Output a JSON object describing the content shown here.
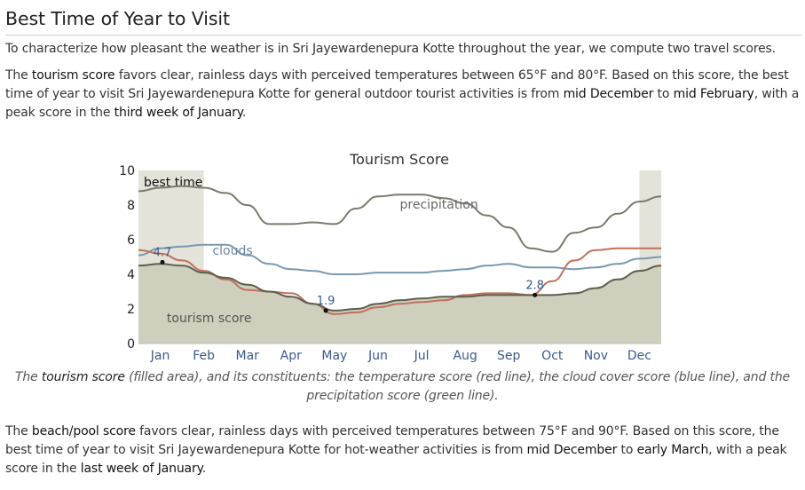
{
  "heading": "Best Time of Year to Visit",
  "intro": "To characterize how pleasant the weather is in Sri Jayewardenepura Kotte throughout the year, we compute two travel scores.",
  "tourism_para": {
    "t1": "The ",
    "h1": "tourism score",
    "t2": " favors clear, rainless days with perceived temperatures between 65°F and 80°F. Based on this score, the best time of year to visit Sri Jayewardenepura Kotte for general outdoor tourist activities is from ",
    "h2": "mid December",
    "t3": " to ",
    "h3": "mid February",
    "t4": ", with a peak score in the ",
    "h4": "third week of January",
    "t5": "."
  },
  "caption": {
    "t1": "The ",
    "h1": "tourism score",
    "t2": " (filled area), and its constituents: the temperature score (red line), the cloud cover score (blue line), and the precipitation score (green line)."
  },
  "beach_para": {
    "t1": "The ",
    "h1": "beach/pool score",
    "t2": " favors clear, rainless days with perceived temperatures between 75°F and 90°F. Based on this score, the best time of year to visit Sri Jayewardenepura Kotte for hot-weather activities is from ",
    "h2": "mid December",
    "t3": " to ",
    "h3": "early March",
    "t4": ", with a peak score in the ",
    "h4": "last week of January",
    "t5": "."
  },
  "chart_data": {
    "type": "area",
    "title": "Tourism Score",
    "xlabel": "",
    "ylabel": "",
    "ylim": [
      0,
      10
    ],
    "yticks": [
      "0",
      "2",
      "4",
      "6",
      "8",
      "10"
    ],
    "months": [
      "Jan",
      "Feb",
      "Mar",
      "Apr",
      "May",
      "Jun",
      "Jul",
      "Aug",
      "Sep",
      "Oct",
      "Nov",
      "Dec"
    ],
    "x_unit": "month",
    "best_time_label": "best time",
    "best_time_ranges": [
      [
        0.0,
        1.5
      ],
      [
        11.5,
        12.0
      ]
    ],
    "colors": {
      "tourism_fill": "#cfcfbd",
      "tourism_line": "#5e5e50",
      "temperature": "#c0705c",
      "clouds": "#7a98b0",
      "precipitation": "#7a7a6c",
      "best_time_band": "#e3e3da",
      "label_blue": "#3a5a8c",
      "axis_text": "#222222"
    },
    "series": [
      {
        "name": "tourism score",
        "role": "filled-area",
        "x": [
          0,
          0.5,
          1,
          1.5,
          2,
          2.5,
          3,
          3.5,
          4,
          4.5,
          5,
          5.5,
          6,
          6.5,
          7,
          7.5,
          8,
          8.5,
          9,
          9.5,
          10,
          10.5,
          11,
          11.5,
          12
        ],
        "values": [
          4.5,
          4.6,
          4.5,
          4.1,
          3.8,
          3.4,
          3.0,
          2.7,
          2.3,
          1.9,
          2.0,
          2.3,
          2.5,
          2.6,
          2.7,
          2.7,
          2.8,
          2.8,
          2.8,
          2.8,
          2.9,
          3.2,
          3.7,
          4.2,
          4.5
        ]
      },
      {
        "name": "temperature score",
        "role": "line",
        "x": [
          0,
          0.5,
          1,
          1.5,
          2,
          2.5,
          3,
          3.5,
          4,
          4.5,
          5,
          5.5,
          6,
          6.5,
          7,
          7.5,
          8,
          8.5,
          9,
          9.5,
          10,
          10.5,
          11,
          11.5,
          12
        ],
        "values": [
          5.4,
          5.2,
          4.8,
          4.2,
          3.7,
          3.1,
          3.0,
          2.9,
          2.3,
          1.7,
          1.8,
          2.1,
          2.3,
          2.4,
          2.5,
          2.8,
          2.9,
          2.9,
          2.8,
          3.6,
          4.8,
          5.4,
          5.5,
          5.5,
          5.5
        ]
      },
      {
        "name": "cloud cover score",
        "label": "clouds",
        "role": "line",
        "x": [
          0,
          0.5,
          1,
          1.5,
          2,
          2.5,
          3,
          3.5,
          4,
          4.5,
          5,
          5.5,
          6,
          6.5,
          7,
          7.5,
          8,
          8.5,
          9,
          9.5,
          10,
          10.5,
          11,
          11.5,
          12
        ],
        "values": [
          5.1,
          5.5,
          5.6,
          5.7,
          5.7,
          5.1,
          4.6,
          4.3,
          4.2,
          4.0,
          4.0,
          4.1,
          4.1,
          4.1,
          4.2,
          4.3,
          4.5,
          4.6,
          4.4,
          4.4,
          4.3,
          4.4,
          4.6,
          4.9,
          5.0
        ]
      },
      {
        "name": "precipitation score",
        "label": "precipitation",
        "role": "line",
        "x": [
          0,
          0.5,
          1,
          1.5,
          2,
          2.5,
          3,
          3.5,
          4,
          4.5,
          5,
          5.5,
          6,
          6.5,
          7,
          7.5,
          8,
          8.5,
          9,
          9.5,
          10,
          10.5,
          11,
          11.5,
          12
        ],
        "values": [
          8.8,
          9.0,
          9.1,
          9.0,
          8.7,
          8.0,
          6.9,
          6.9,
          7.0,
          6.9,
          7.8,
          8.5,
          8.6,
          8.6,
          8.4,
          8.1,
          7.4,
          6.7,
          5.5,
          5.3,
          6.4,
          6.7,
          7.5,
          8.2,
          8.5
        ]
      }
    ],
    "annotations": [
      {
        "label": "4.7",
        "x": 0.55,
        "value": 4.7
      },
      {
        "label": "1.9",
        "x": 4.3,
        "value": 1.9
      },
      {
        "label": "2.8",
        "x": 9.1,
        "value": 2.8
      }
    ],
    "series_labels": [
      {
        "text": "tourism score",
        "series": "tourism score"
      },
      {
        "text": "clouds",
        "series": "cloud cover score"
      },
      {
        "text": "precipitation",
        "series": "precipitation score"
      }
    ]
  }
}
